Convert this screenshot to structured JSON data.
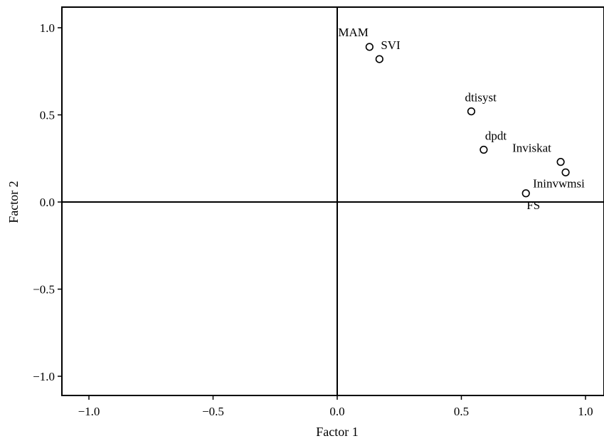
{
  "chart_data": {
    "type": "scatter",
    "xlabel": "Factor 1",
    "ylabel": "Factor 2",
    "xlim": [
      -1.1,
      1.05
    ],
    "ylim": [
      -1.1,
      1.12
    ],
    "x_ticks": [
      -1.0,
      -0.5,
      0.0,
      0.5,
      1.0
    ],
    "x_tick_labels": [
      "−1.0",
      "−0.5",
      "0.0",
      "0.5",
      "1.0"
    ],
    "y_ticks": [
      1.0,
      0.5,
      0.0,
      -0.5,
      -1.0
    ],
    "y_tick_labels": [
      "1.0",
      "0.5",
      "0.0",
      "−0.5",
      "−1.0"
    ],
    "reference_lines": {
      "x": 0,
      "y": 0
    },
    "grid": false,
    "legend": "none",
    "points": [
      {
        "label": "MAM",
        "x": 0.13,
        "y": 0.89
      },
      {
        "label": "SVI",
        "x": 0.17,
        "y": 0.82
      },
      {
        "label": "dtisyst",
        "x": 0.54,
        "y": 0.52
      },
      {
        "label": "dpdt",
        "x": 0.59,
        "y": 0.3
      },
      {
        "label": "Inviskat",
        "x": 0.9,
        "y": 0.23
      },
      {
        "label": "Ininvwmsi",
        "x": 0.92,
        "y": 0.17
      },
      {
        "label": "FS",
        "x": 0.76,
        "y": 0.05
      }
    ]
  }
}
